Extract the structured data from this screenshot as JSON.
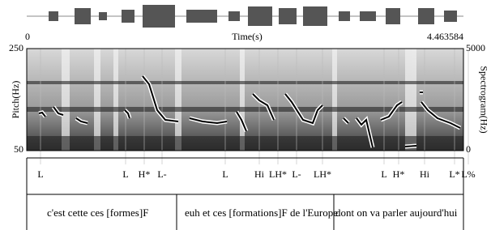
{
  "waveform": {
    "time_label": "Time(s)",
    "start": "0",
    "end": "4.463584"
  },
  "pitch_axis": {
    "label": "Pitch(Hz)",
    "top": "250",
    "bottom": "50"
  },
  "spectrogram_axis": {
    "label": "Spectrogram(Hz)",
    "top": "5000",
    "bottom": "0"
  },
  "tone_tier": {
    "labels": [
      "L",
      "L",
      "H*",
      "L-",
      "L",
      "Hi",
      "LH*",
      "L-",
      "LH*",
      "L",
      "H*",
      "Hi",
      "L*",
      "L%"
    ]
  },
  "text_tier": {
    "segments": [
      "c'est cette ces [formes]F",
      "euh et ces [formations]F de l'Europe",
      "dont on va parler aujourd'hui"
    ]
  }
}
